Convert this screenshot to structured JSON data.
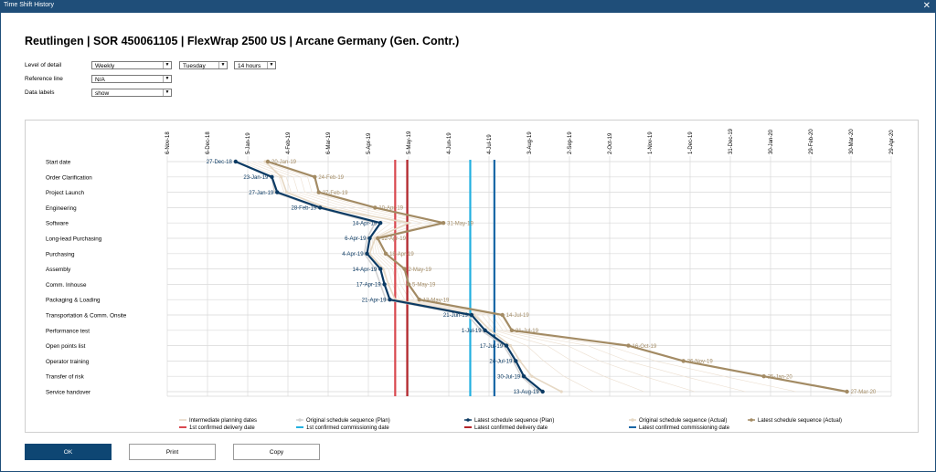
{
  "window": {
    "title": "Time Shift History"
  },
  "heading": "Reutlingen  |  SOR 450061105  |  FlexWrap 2500 US  |  Arcane Germany (Gen. Contr.)",
  "controls": {
    "level_label": "Level of detail",
    "level_value": "Weekly",
    "day_value": "Tuesday",
    "hours_value": "14 hours",
    "reference_label": "Reference line",
    "reference_value": "N/A",
    "datalabels_label": "Data labels",
    "datalabels_value": "show"
  },
  "buttons": {
    "ok": "OK",
    "print": "Print",
    "copy": "Copy"
  },
  "colors": {
    "plan": "#0b3a63",
    "actual": "#a38b64",
    "original_actual": "#e6d8c4",
    "original_plan": "#d2d2d2",
    "intermediate": "#ecdfd0",
    "confirmed_delivery_1st": "#d9484f",
    "confirmed_commissioning_1st": "#22b0e0",
    "confirmed_delivery_latest": "#b3242a",
    "confirmed_commissioning_latest": "#1766a5"
  },
  "chart_data": {
    "type": "line",
    "x_ticks": [
      "6-Nov-18",
      "6-Dec-18",
      "5-Jan-19",
      "4-Feb-19",
      "6-Mar-19",
      "5-Apr-19",
      "5-May-19",
      "4-Jun-19",
      "4-Jul-19",
      "3-Aug-19",
      "2-Sep-19",
      "2-Oct-19",
      "1-Nov-19",
      "1-Dec-19",
      "31-Dec-19",
      "30-Jan-20",
      "29-Feb-20",
      "30-Mar-20",
      "29-Apr-20"
    ],
    "x_range": [
      "2018-11-06",
      "2020-04-29"
    ],
    "tasks": [
      "Start date",
      "Order Clarification",
      "Project Launch",
      "Engineering",
      "Software",
      "Long-lead Purchasing",
      "Purchasing",
      "Assembly",
      "Comm. Inhouse",
      "Packaging & Loading",
      "Transportation & Comm. Onsite",
      "Performance test",
      "Open points list",
      "Operator training",
      "Transfer of risk",
      "Service handover"
    ],
    "series": [
      {
        "name": "Latest schedule sequence (Plan)",
        "key": "plan",
        "dates": [
          "2018-12-27",
          "2019-01-23",
          "2019-01-27",
          "2019-02-28",
          "2019-04-14",
          "2019-04-06",
          "2019-04-04",
          "2019-04-14",
          "2019-04-17",
          "2019-04-21",
          "2019-06-21",
          "2019-07-01",
          "2019-07-17",
          "2019-07-24",
          "2019-07-30",
          "2019-08-13"
        ],
        "labels": [
          "27-Dec-18",
          "23-Jan-19",
          "27-Jan-19",
          "28-Feb-19",
          "14-Apr-19",
          "6-Apr-19",
          "4-Apr-19",
          "14-Apr-19",
          "17-Apr-19",
          "21-Apr-19",
          "21-Jun-19",
          "1-Jul-19",
          "17-Jul-19",
          "24-Jul-19",
          "30-Jul-19",
          "13-Aug-19"
        ]
      },
      {
        "name": "Latest schedule sequence (Actual)",
        "key": "actual",
        "dates": [
          "2019-01-20",
          "2019-02-24",
          "2019-02-27",
          "2019-04-10",
          "2019-05-31",
          "2019-04-12",
          "2019-04-18",
          "2019-05-02",
          "2019-05-05",
          "2019-05-13",
          "2019-07-14",
          "2019-07-21",
          "2019-10-16",
          "2019-11-26",
          "2020-01-25",
          "2020-03-27"
        ],
        "labels": [
          "20-Jan-19",
          "24-Feb-19",
          "27-Feb-19",
          "10-Apr-19",
          "31-May-19",
          "12-Apr-19",
          "18-Apr-19",
          "2-May-19",
          "5-May-19",
          "13-May-19",
          "14-Jul-19",
          "21-Jul-19",
          "16-Oct-19",
          "26-Nov-19",
          "25-Jan-20",
          "27-Mar-20"
        ]
      },
      {
        "name": "Original schedule sequence (Plan)",
        "key": "original_plan",
        "dates": [
          "2018-12-27",
          "2019-01-23",
          "2019-01-25",
          "2019-02-26",
          "2019-04-10",
          "2019-04-04",
          "2019-04-02",
          "2019-04-10",
          "2019-04-14",
          "2019-04-18",
          "2019-06-18",
          "2019-06-28",
          "2019-07-15",
          "2019-07-22",
          "2019-07-28",
          "2019-08-10"
        ]
      },
      {
        "name": "Original schedule sequence (Actual)",
        "key": "original_actual",
        "dates": [
          "2019-01-18",
          "2019-01-30",
          "2019-02-03",
          "2019-03-04",
          "2019-05-05",
          "2019-04-10",
          "2019-04-06",
          "2019-04-16",
          "2019-04-20",
          "2019-04-25",
          "2019-06-23",
          "2019-07-05",
          "2019-07-20",
          "2019-07-27",
          "2019-08-05",
          "2019-08-27"
        ]
      }
    ],
    "vertical_lines": [
      {
        "name": "1st confirmed delivery date",
        "date": "2019-04-25",
        "key": "confirmed_delivery_1st"
      },
      {
        "name": "Latest confirmed delivery date",
        "date": "2019-05-04",
        "key": "confirmed_delivery_latest"
      },
      {
        "name": "1st confirmed commissioning date",
        "date": "2019-06-20",
        "key": "confirmed_commissioning_1st"
      },
      {
        "name": "Latest confirmed commissioning date",
        "date": "2019-07-08",
        "key": "confirmed_commissioning_latest"
      }
    ],
    "legend": [
      {
        "label": "Intermediate planning dates",
        "key": "intermediate",
        "kind": "line"
      },
      {
        "label": "Original schedule sequence (Plan)",
        "key": "original_plan",
        "kind": "marker"
      },
      {
        "label": "Latest schedule sequence (Plan)",
        "key": "plan",
        "kind": "marker"
      },
      {
        "label": "Original schedule sequence (Actual)",
        "key": "original_actual",
        "kind": "marker"
      },
      {
        "label": "Latest schedule sequence (Actual)",
        "key": "actual",
        "kind": "marker"
      },
      {
        "label": "1st confirmed delivery date",
        "key": "confirmed_delivery_1st",
        "kind": "line"
      },
      {
        "label": "1st confirmed commissioning date",
        "key": "confirmed_commissioning_1st",
        "kind": "line"
      },
      {
        "label": "Latest confirmed delivery date",
        "key": "confirmed_delivery_latest",
        "kind": "line"
      },
      {
        "label": "Latest confirmed commissioning date",
        "key": "confirmed_commissioning_latest",
        "kind": "line"
      }
    ],
    "grid": true,
    "legend_position": "bottom"
  }
}
